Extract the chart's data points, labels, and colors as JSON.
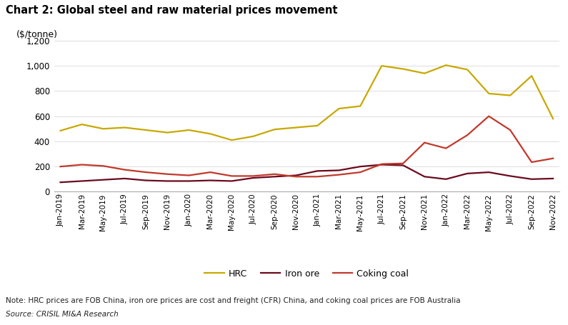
{
  "title": "Chart 2: Global steel and raw material prices movement",
  "ylabel": "($/tonne)",
  "ylim": [
    0,
    1200
  ],
  "yticks": [
    0,
    200,
    400,
    600,
    800,
    1000,
    1200
  ],
  "note": "Note: HRC prices are FOB China, iron ore prices are cost and freight (CFR) China, and coking coal prices are FOB Australia",
  "source": "Source: CRISIL MI&A Research",
  "x_labels": [
    "Jan-2019",
    "Mar-2019",
    "May-2019",
    "Jul-2019",
    "Sep-2019",
    "Nov-2019",
    "Jan-2020",
    "Mar-2020",
    "May-2020",
    "Jul-2020",
    "Sep-2020",
    "Nov-2020",
    "Jan-2021",
    "Mar-2021",
    "May-2021",
    "Jul-2021",
    "Sep-2021",
    "Nov-2021",
    "Jan-2022",
    "Mar-2022",
    "May-2022",
    "Jul-2022",
    "Sep-2022",
    "Nov-2022"
  ],
  "hrc": [
    485,
    535,
    500,
    510,
    490,
    470,
    490,
    460,
    410,
    440,
    495,
    510,
    525,
    660,
    680,
    1000,
    975,
    940,
    1005,
    970,
    780,
    765,
    920,
    580
  ],
  "iron_ore": [
    75,
    85,
    95,
    105,
    90,
    85,
    85,
    90,
    85,
    110,
    120,
    130,
    165,
    170,
    200,
    215,
    210,
    120,
    100,
    145,
    155,
    125,
    100,
    105
  ],
  "coking_coal": [
    200,
    215,
    205,
    175,
    155,
    140,
    130,
    155,
    125,
    125,
    140,
    120,
    120,
    135,
    155,
    220,
    225,
    390,
    345,
    450,
    600,
    490,
    235,
    265
  ],
  "hrc_color": "#C8A800",
  "iron_ore_color": "#6B0A1E",
  "coking_coal_color": "#C0392B",
  "legend_labels": [
    "HRC",
    "Iron ore",
    "Coking coal"
  ],
  "background_color": "#FFFFFF",
  "grid_color": "#D0D0D0"
}
